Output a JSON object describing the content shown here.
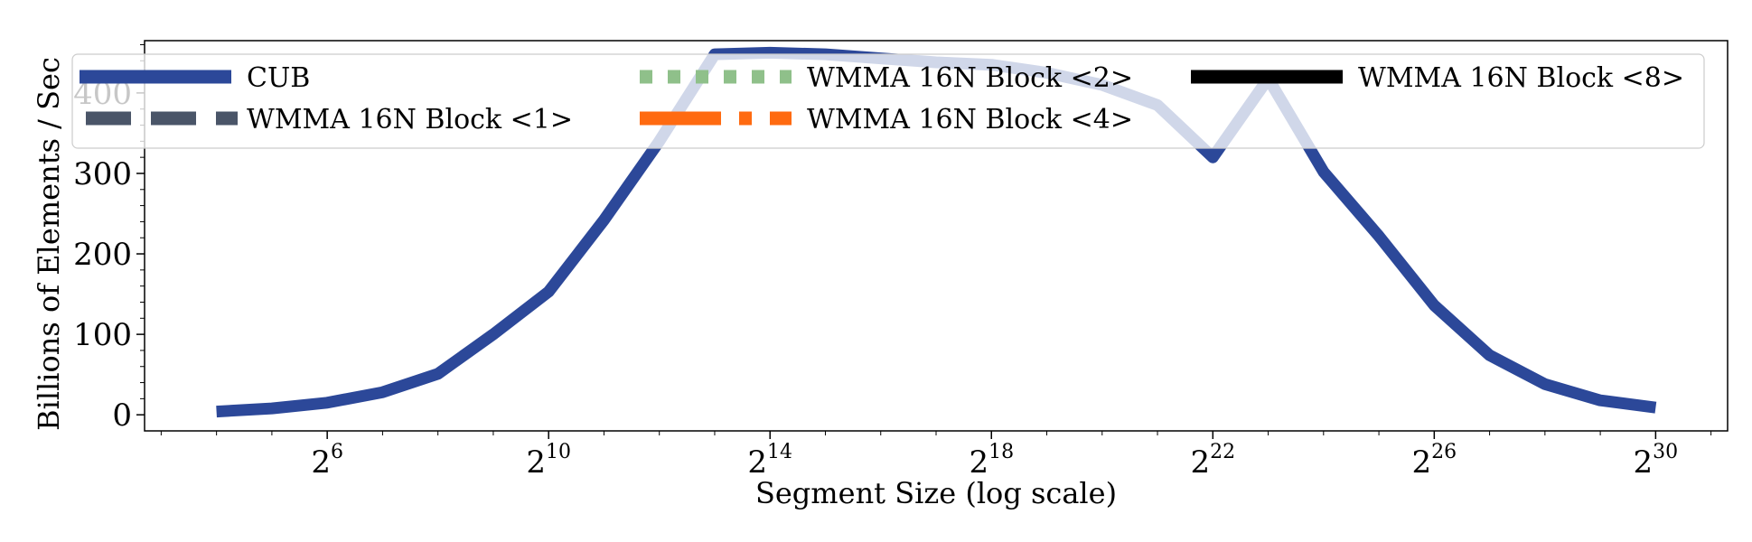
{
  "chart_data": {
    "type": "line",
    "xlabel": "Segment Size (log scale)",
    "ylabel": "Billions of Elements / Sec",
    "x_scale": "log2",
    "xlim": [
      2.7,
      31.3
    ],
    "ylim": [
      -20,
      465
    ],
    "x_ticks": [
      {
        "value": 6,
        "base": "2",
        "exp": "6"
      },
      {
        "value": 10,
        "base": "2",
        "exp": "10"
      },
      {
        "value": 14,
        "base": "2",
        "exp": "14"
      },
      {
        "value": 18,
        "base": "2",
        "exp": "18"
      },
      {
        "value": 22,
        "base": "2",
        "exp": "22"
      },
      {
        "value": 26,
        "base": "2",
        "exp": "26"
      },
      {
        "value": 30,
        "base": "2",
        "exp": "30"
      }
    ],
    "y_ticks": [
      {
        "value": 0,
        "label": "0"
      },
      {
        "value": 100,
        "label": "100"
      },
      {
        "value": 200,
        "label": "200"
      },
      {
        "value": 300,
        "label": "300"
      },
      {
        "value": 400,
        "label": "400"
      }
    ],
    "grid": false,
    "legend": {
      "placement": "top",
      "columns": 3,
      "entries": [
        {
          "name": "CUB",
          "color": "#2c4899",
          "dash": "solid"
        },
        {
          "name": "WMMA 16N Block <1>",
          "color": "#4a5568",
          "dash": "dashed"
        },
        {
          "name": "WMMA 16N Block <2>",
          "color": "#8fc08a",
          "dash": "dotted"
        },
        {
          "name": "WMMA 16N Block <4>",
          "color": "#ff6a10",
          "dash": "dashdot"
        },
        {
          "name": "WMMA 16N Block <8>",
          "color": "#000000",
          "dash": "solid"
        }
      ]
    },
    "series": [
      {
        "name": "CUB",
        "color": "#2c4899",
        "x": [
          4,
          5,
          6,
          7,
          8,
          9,
          10,
          11,
          12,
          13,
          14,
          15,
          16,
          17,
          18,
          19,
          20,
          21,
          22,
          23,
          24,
          25,
          26,
          27,
          28,
          29,
          30
        ],
        "y": [
          4,
          8,
          15,
          28,
          51,
          100,
          153,
          242,
          340,
          448,
          450,
          448,
          443,
          438,
          435,
          425,
          410,
          385,
          320,
          418,
          302,
          222,
          136,
          74,
          38,
          18,
          9
        ]
      }
    ]
  }
}
